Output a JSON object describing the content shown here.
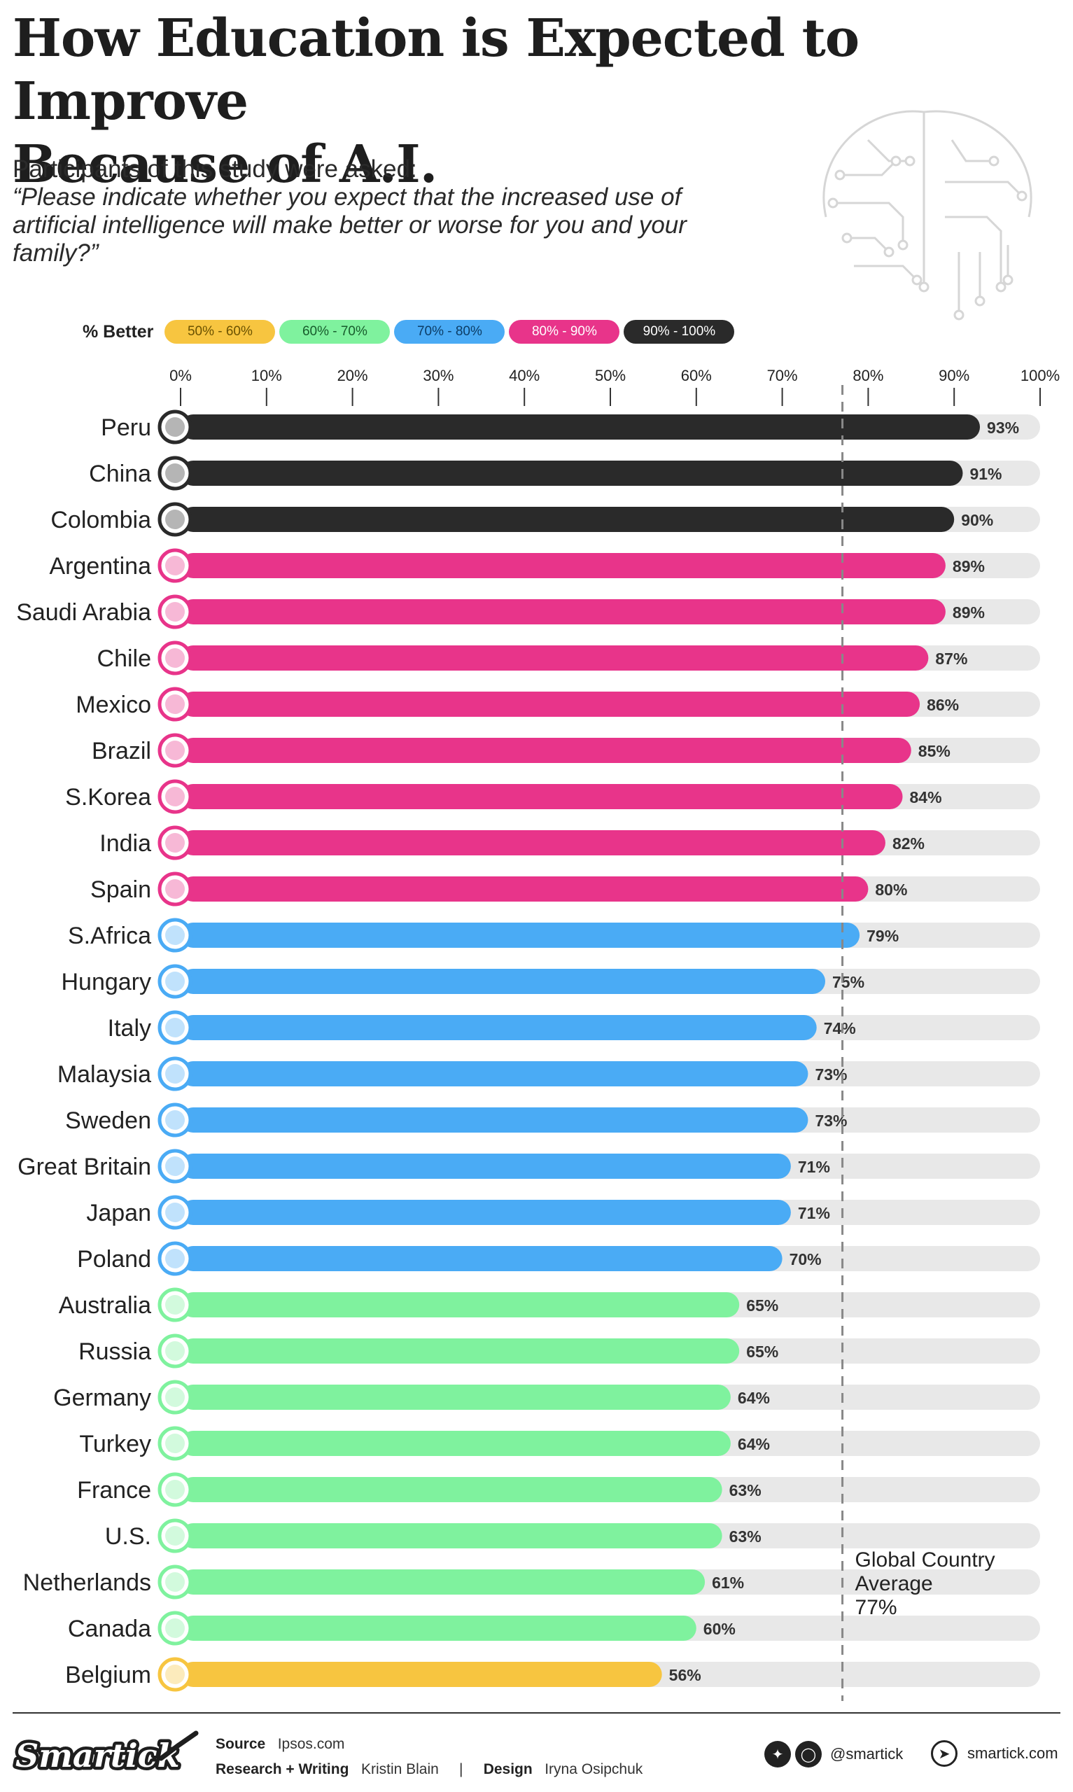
{
  "title_line1": "How Education is Expected to Improve",
  "title_line2": "Because of A.I.",
  "intro": "Participants of this study were asked:",
  "question": "“Please indicate whether you expect that the increased use of artificial intelligence will make better or worse for you and your family?”",
  "legend": {
    "title": "% Better",
    "items": [
      {
        "label": "50% - 60%",
        "color": "#f7c540",
        "text_color": "#6b5200"
      },
      {
        "label": "60% - 70%",
        "color": "#7ff29e",
        "text_color": "#175c2c"
      },
      {
        "label": "70% - 80%",
        "color": "#4aabf5",
        "text_color": "#0c3d66"
      },
      {
        "label": "80% - 90%",
        "color": "#e8348a",
        "text_color": "#ffffff"
      },
      {
        "label": "90% - 100%",
        "color": "#2a2a2a",
        "text_color": "#ffffff"
      }
    ]
  },
  "chart_data": {
    "type": "bar",
    "orientation": "horizontal",
    "x_ticks": [
      "0%",
      "10%",
      "20%",
      "30%",
      "40%",
      "50%",
      "60%",
      "70%",
      "80%",
      "90%",
      "100%"
    ],
    "xlim": [
      0,
      100
    ],
    "categories": [
      "Peru",
      "China",
      "Colombia",
      "Argentina",
      "Saudi Arabia",
      "Chile",
      "Mexico",
      "Brazil",
      "S.Korea",
      "India",
      "Spain",
      "S.Africa",
      "Hungary",
      "Italy",
      "Malaysia",
      "Sweden",
      "Great Britain",
      "Japan",
      "Poland",
      "Australia",
      "Russia",
      "Germany",
      "Turkey",
      "France",
      "U.S.",
      "Netherlands",
      "Canada",
      "Belgium"
    ],
    "values": [
      93,
      91,
      90,
      89,
      89,
      87,
      86,
      85,
      84,
      82,
      80,
      79,
      75,
      74,
      73,
      73,
      71,
      71,
      70,
      65,
      65,
      64,
      64,
      63,
      63,
      61,
      60,
      56
    ],
    "value_labels": [
      "93%",
      "91%",
      "90%",
      "89%",
      "89%",
      "87%",
      "86%",
      "85%",
      "84%",
      "82%",
      "80%",
      "79%",
      "75%",
      "74%",
      "73%",
      "73%",
      "71%",
      "71%",
      "70%",
      "65%",
      "65%",
      "64%",
      "64%",
      "63%",
      "63%",
      "61%",
      "60%",
      "56%"
    ],
    "average": {
      "value": 77,
      "label_line1": "Global Country",
      "label_line2": "Average",
      "label_line3": "77%"
    },
    "track_color": "#e8e8e8",
    "color_bins": [
      {
        "min": 90,
        "color": "#2a2a2a"
      },
      {
        "min": 80,
        "color": "#e8348a"
      },
      {
        "min": 70,
        "color": "#4aabf5"
      },
      {
        "min": 60,
        "color": "#7ff29e"
      },
      {
        "min": 50,
        "color": "#f7c540"
      }
    ]
  },
  "footer": {
    "logo_text": "Smartick",
    "source_label": "Source",
    "source_value": "Ipsos.com",
    "research_label": "Research + Writing",
    "research_value": "Kristin Blain",
    "separator": "|",
    "design_label": "Design",
    "design_value": "Iryna Osipchuk",
    "social_handle": "@smartick",
    "website": "smartick.com"
  }
}
